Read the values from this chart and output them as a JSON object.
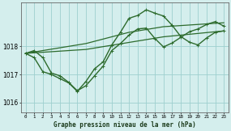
{
  "background_color": "#d4eeed",
  "grid_color": "#9ecfcf",
  "line_color": "#2d6b2d",
  "title": "Graphe pression niveau de la mer (hPa)",
  "xlim": [
    -0.5,
    23.5
  ],
  "ylim": [
    1015.65,
    1019.55
  ],
  "yticks": [
    1016,
    1017,
    1018
  ],
  "xticks": [
    0,
    1,
    2,
    3,
    4,
    5,
    6,
    7,
    8,
    9,
    10,
    11,
    12,
    13,
    14,
    15,
    16,
    17,
    18,
    19,
    20,
    21,
    22,
    23
  ],
  "series": [
    {
      "y": [
        1017.75,
        1017.6,
        1017.1,
        1017.0,
        1016.85,
        1016.7,
        1016.4,
        1016.75,
        1017.2,
        1017.45,
        1018.05,
        1018.5,
        1019.0,
        1019.1,
        1019.3,
        1019.18,
        1019.08,
        1018.75,
        1018.35,
        1018.15,
        1018.05,
        1018.3,
        1018.5,
        1018.55
      ],
      "marker": true,
      "linewidth": 1.0
    },
    {
      "y": [
        1017.75,
        1017.8,
        1017.85,
        1017.9,
        1017.95,
        1018.0,
        1018.05,
        1018.1,
        1018.18,
        1018.26,
        1018.34,
        1018.42,
        1018.5,
        1018.55,
        1018.6,
        1018.65,
        1018.7,
        1018.72,
        1018.74,
        1018.76,
        1018.78,
        1018.8,
        1018.82,
        1018.84
      ],
      "marker": false,
      "linewidth": 0.9
    },
    {
      "y": [
        1017.75,
        1017.77,
        1017.79,
        1017.81,
        1017.83,
        1017.85,
        1017.87,
        1017.89,
        1017.94,
        1017.99,
        1018.04,
        1018.09,
        1018.14,
        1018.19,
        1018.24,
        1018.29,
        1018.34,
        1018.37,
        1018.4,
        1018.43,
        1018.46,
        1018.49,
        1018.52,
        1018.55
      ],
      "marker": false,
      "linewidth": 0.9
    },
    {
      "y": [
        1017.75,
        1017.85,
        1017.6,
        1017.05,
        1016.95,
        1016.72,
        1016.42,
        1016.6,
        1016.95,
        1017.3,
        1017.85,
        1018.1,
        1018.4,
        1018.62,
        1018.65,
        1018.28,
        1017.98,
        1018.12,
        1018.32,
        1018.52,
        1018.62,
        1018.78,
        1018.88,
        1018.72
      ],
      "marker": true,
      "linewidth": 1.0
    }
  ]
}
